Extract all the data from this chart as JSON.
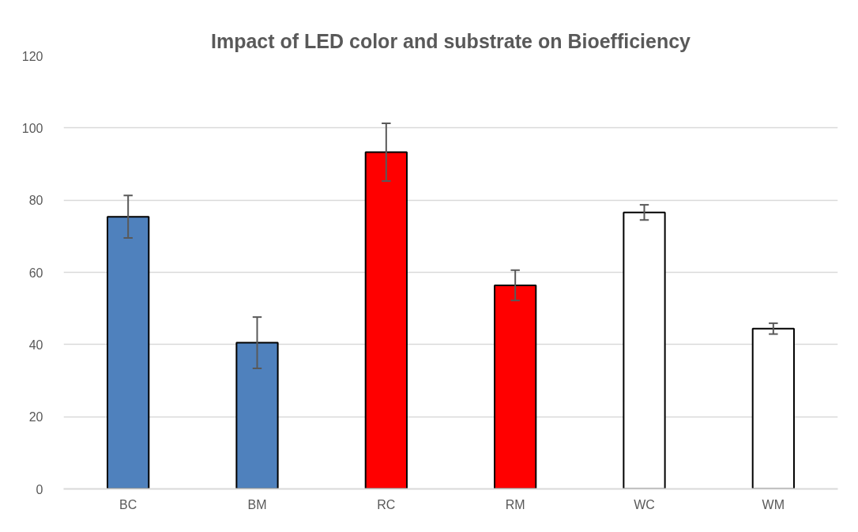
{
  "chart_data": {
    "type": "bar",
    "title": "Impact of LED color and substrate on Bioefficiency",
    "categories": [
      "BC",
      "BM",
      "RC",
      "RM",
      "WC",
      "WM"
    ],
    "values": [
      75.4,
      40.5,
      93.3,
      56.4,
      76.6,
      44.4
    ],
    "colors": [
      "#4f81bd",
      "#4f81bd",
      "#ff0000",
      "#ff0000",
      "#ffffff",
      "#ffffff"
    ],
    "errors": [
      5.9,
      7.1,
      8,
      4.2,
      2.1,
      1.5
    ],
    "ylim": [
      0,
      120
    ],
    "yticks": [
      0,
      20,
      40,
      60,
      80,
      100,
      120
    ],
    "grid": "y"
  }
}
